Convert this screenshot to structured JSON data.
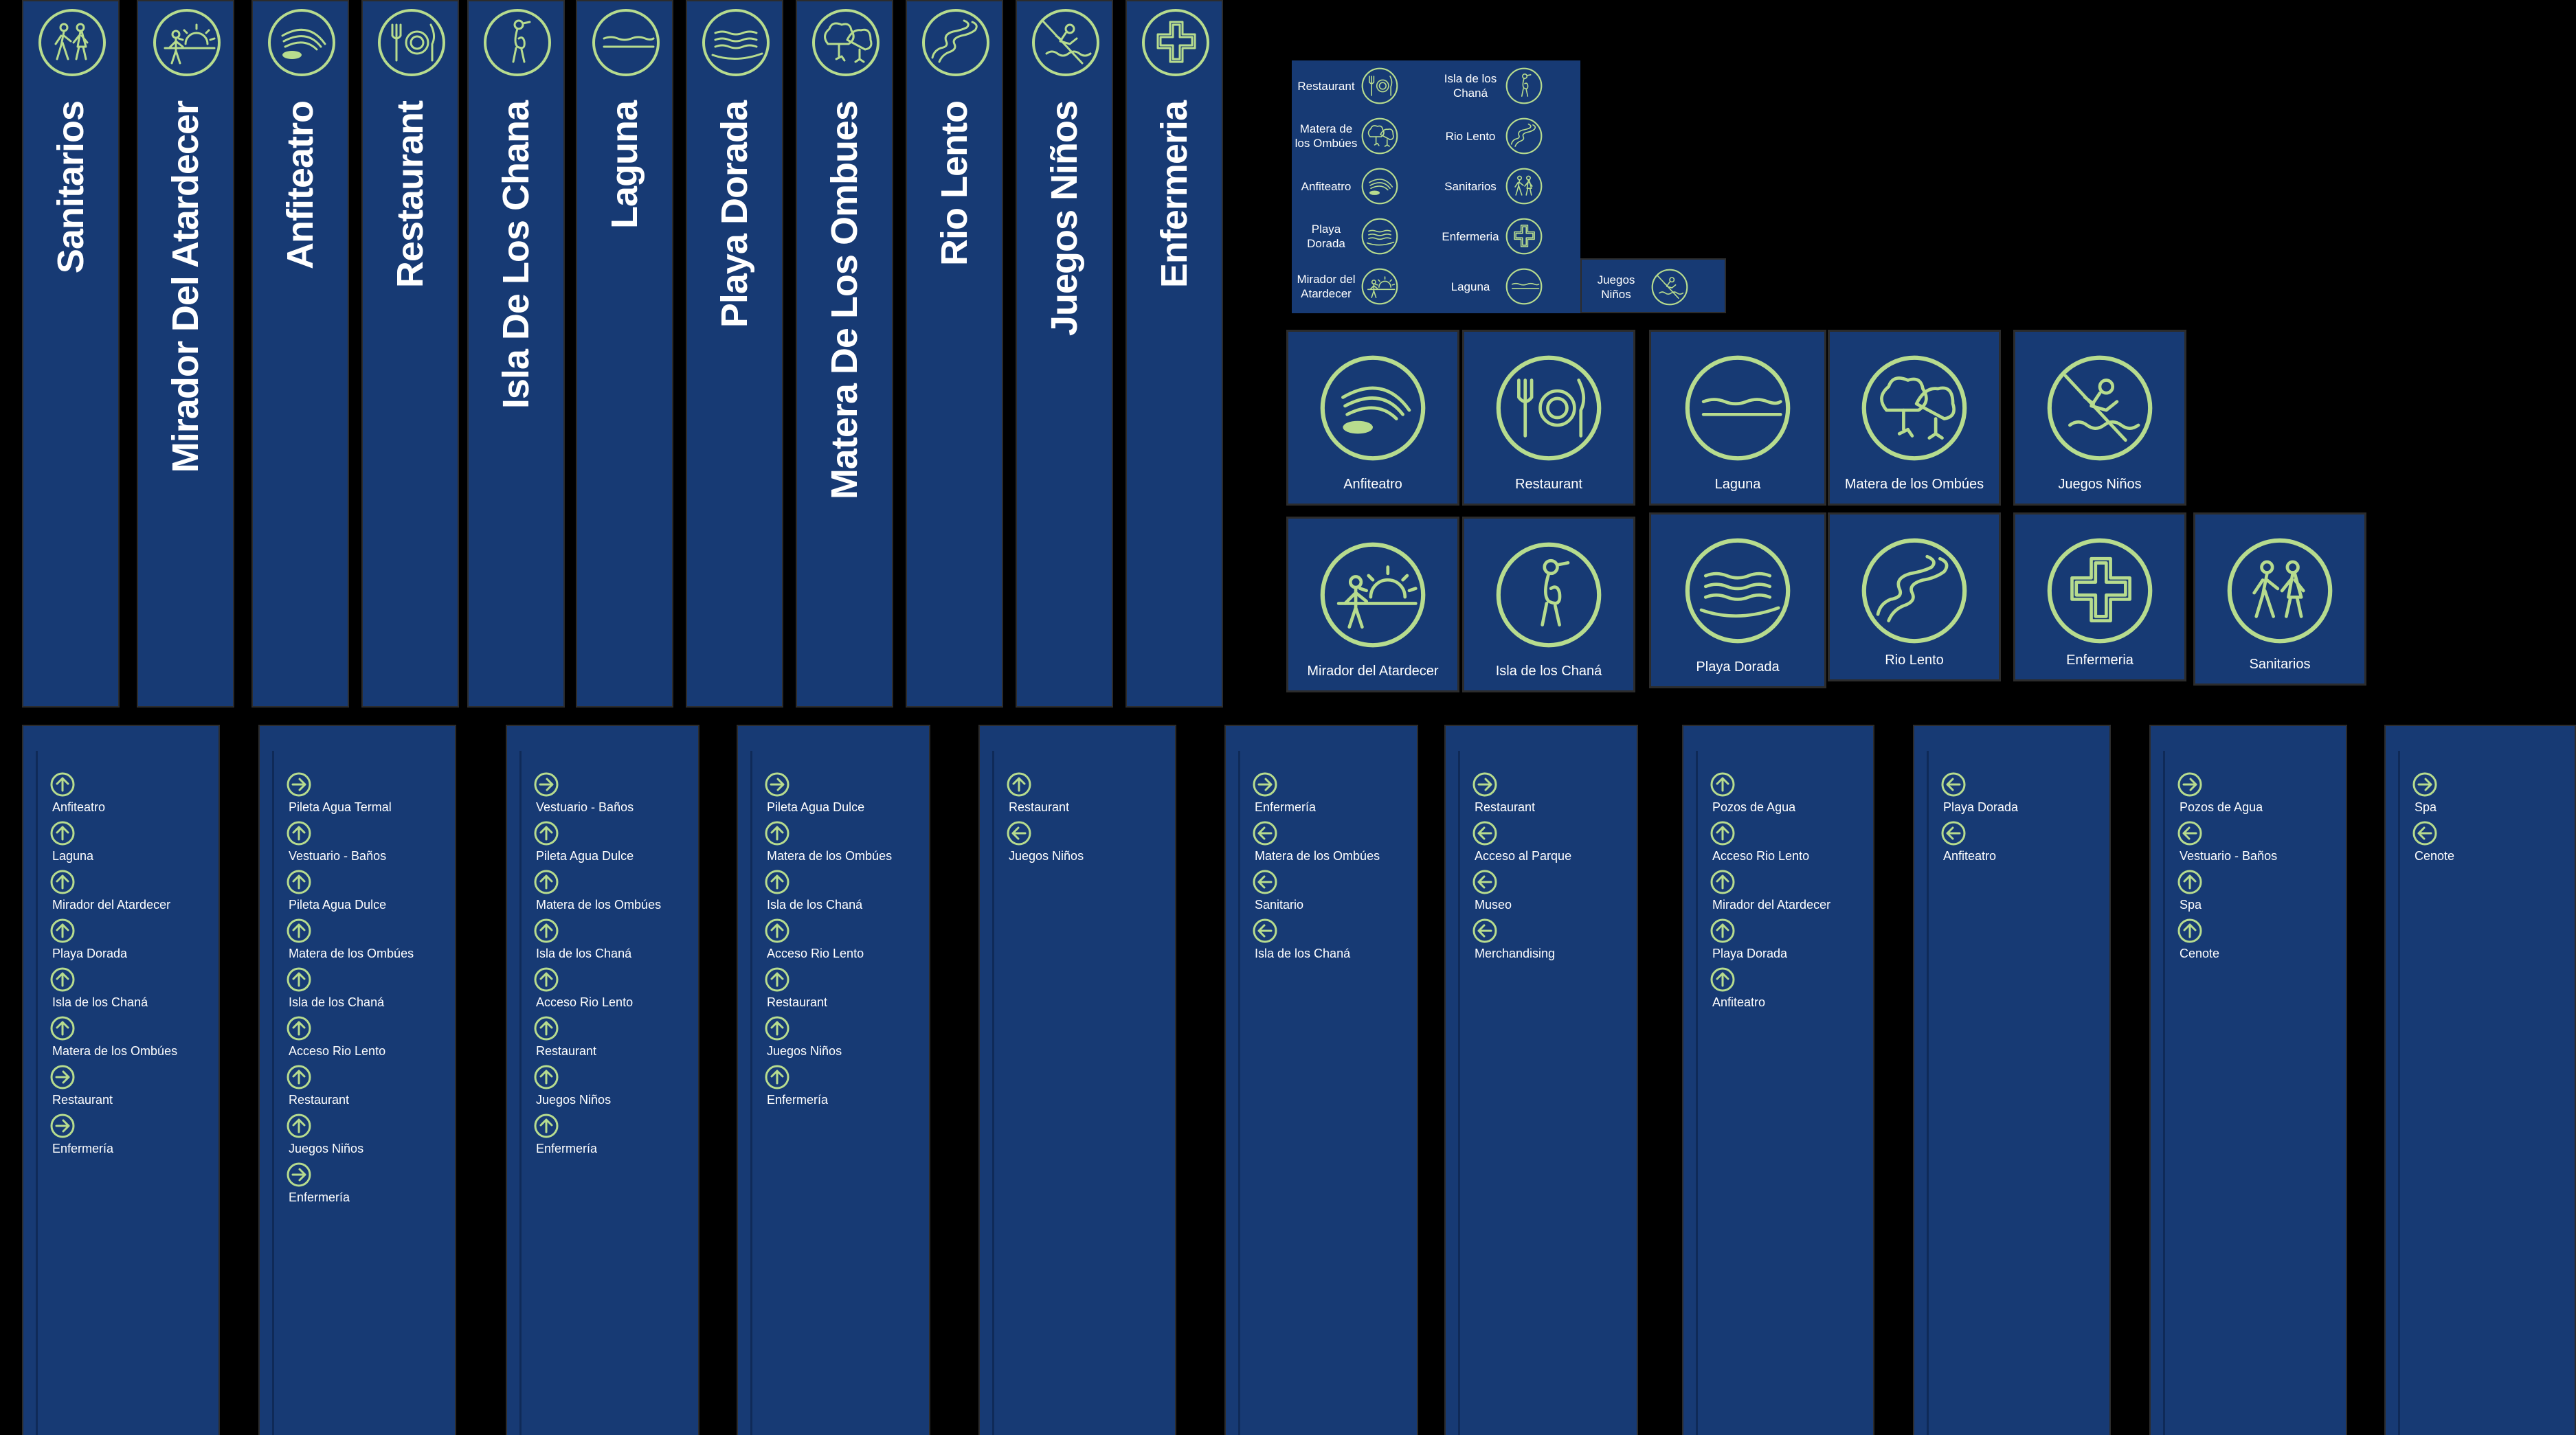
{
  "colors": {
    "background": "#000000",
    "panel": "#173a74",
    "icon_green": "#b7dc8e",
    "text": "#ffffff"
  },
  "banners": [
    {
      "label": "Sanitarios",
      "icon": "restroom-icon"
    },
    {
      "label": "Mirador Del Atardecer",
      "icon": "sunset-viewpoint-icon"
    },
    {
      "label": "Anfiteatro",
      "icon": "amphitheater-icon"
    },
    {
      "label": "Restaurant",
      "icon": "restaurant-icon"
    },
    {
      "label": "Isla De Los Chana",
      "icon": "island-bird-icon"
    },
    {
      "label": "Laguna",
      "icon": "lagoon-icon"
    },
    {
      "label": "Playa Dorada",
      "icon": "beach-icon"
    },
    {
      "label": "Matera De Los Ombues",
      "icon": "trees-icon"
    },
    {
      "label": "Rio Lento",
      "icon": "river-icon"
    },
    {
      "label": "Juegos Niños",
      "icon": "kids-games-icon"
    },
    {
      "label": "Enfermeria",
      "icon": "first-aid-icon"
    }
  ],
  "small_panel": [
    {
      "label": "Restaurant",
      "icon": "restaurant-icon"
    },
    {
      "label": "Isla de los Chaná",
      "icon": "island-bird-icon"
    },
    {
      "label": "Matera de los Ombúes",
      "icon": "trees-icon"
    },
    {
      "label": "Rio Lento",
      "icon": "river-icon"
    },
    {
      "label": "Anfiteatro",
      "icon": "amphitheater-icon"
    },
    {
      "label": "Sanitarios",
      "icon": "restroom-icon"
    },
    {
      "label": "Playa Dorada",
      "icon": "beach-icon"
    },
    {
      "label": "Enfermeria",
      "icon": "first-aid-icon"
    },
    {
      "label": "Mirador del Atardecer",
      "icon": "sunset-viewpoint-icon"
    },
    {
      "label": "Laguna",
      "icon": "lagoon-icon"
    },
    {
      "label": "Juegos Niños",
      "icon": "kids-games-icon"
    }
  ],
  "tiles": [
    {
      "label": "Anfiteatro",
      "icon": "amphitheater-icon"
    },
    {
      "label": "Restaurant",
      "icon": "restaurant-icon"
    },
    {
      "label": "Laguna",
      "icon": "lagoon-icon"
    },
    {
      "label": "Matera de los Ombúes",
      "icon": "trees-icon"
    },
    {
      "label": "Juegos Niños",
      "icon": "kids-games-icon"
    },
    {
      "label": "Mirador del Atardecer",
      "icon": "sunset-viewpoint-icon"
    },
    {
      "label": "Isla de los Chaná",
      "icon": "island-bird-icon"
    },
    {
      "label": "Playa Dorada",
      "icon": "beach-icon"
    },
    {
      "label": "Rio Lento",
      "icon": "river-icon"
    },
    {
      "label": "Enfermeria",
      "icon": "first-aid-icon"
    },
    {
      "label": "Sanitarios",
      "icon": "restroom-icon"
    }
  ],
  "directories": [
    {
      "rows": [
        {
          "dir": "up",
          "label": "Anfiteatro"
        },
        {
          "dir": "up",
          "label": "Laguna"
        },
        {
          "dir": "up",
          "label": "Mirador del Atardecer"
        },
        {
          "dir": "up",
          "label": "Playa Dorada"
        },
        {
          "dir": "up",
          "label": "Isla de los Chaná"
        },
        {
          "dir": "up",
          "label": "Matera de los Ombúes"
        },
        {
          "dir": "right",
          "label": "Restaurant"
        },
        {
          "dir": "right",
          "label": "Enfermería"
        }
      ]
    },
    {
      "rows": [
        {
          "dir": "right",
          "label": "Pileta Agua Termal"
        },
        {
          "dir": "up",
          "label": "Vestuario - Baños"
        },
        {
          "dir": "up",
          "label": "Pileta Agua Dulce"
        },
        {
          "dir": "up",
          "label": "Matera de los Ombúes"
        },
        {
          "dir": "up",
          "label": "Isla de los Chaná"
        },
        {
          "dir": "up",
          "label": "Acceso Rio Lento"
        },
        {
          "dir": "up",
          "label": "Restaurant"
        },
        {
          "dir": "up",
          "label": "Juegos Niños"
        },
        {
          "dir": "right",
          "label": "Enfermería"
        }
      ]
    },
    {
      "rows": [
        {
          "dir": "right",
          "label": "Vestuario - Baños"
        },
        {
          "dir": "up",
          "label": "Pileta Agua Dulce"
        },
        {
          "dir": "up",
          "label": "Matera de los Ombúes"
        },
        {
          "dir": "up",
          "label": "Isla de los Chaná"
        },
        {
          "dir": "up",
          "label": "Acceso Rio Lento"
        },
        {
          "dir": "up",
          "label": "Restaurant"
        },
        {
          "dir": "up",
          "label": "Juegos Niños"
        },
        {
          "dir": "up",
          "label": "Enfermería"
        }
      ]
    },
    {
      "rows": [
        {
          "dir": "right",
          "label": "Pileta Agua Dulce"
        },
        {
          "dir": "up",
          "label": "Matera de los Ombúes"
        },
        {
          "dir": "up",
          "label": "Isla de los Chaná"
        },
        {
          "dir": "up",
          "label": "Acceso Rio Lento"
        },
        {
          "dir": "up",
          "label": "Restaurant"
        },
        {
          "dir": "up",
          "label": "Juegos Niños"
        },
        {
          "dir": "up",
          "label": "Enfermería"
        }
      ]
    },
    {
      "rows": [
        {
          "dir": "up",
          "label": "Restaurant"
        },
        {
          "dir": "left",
          "label": "Juegos Niños"
        }
      ]
    },
    {
      "rows": [
        {
          "dir": "right",
          "label": "Enfermería"
        },
        {
          "dir": "left",
          "label": "Matera de los Ombúes"
        },
        {
          "dir": "left",
          "label": "Sanitario"
        },
        {
          "dir": "left",
          "label": "Isla de los Chaná"
        }
      ]
    },
    {
      "rows": [
        {
          "dir": "right",
          "label": "Restaurant"
        },
        {
          "dir": "left",
          "label": "Acceso al Parque"
        },
        {
          "dir": "left",
          "label": "Museo"
        },
        {
          "dir": "left",
          "label": "Merchandising"
        }
      ]
    },
    {
      "rows": [
        {
          "dir": "up",
          "label": "Pozos de Agua"
        },
        {
          "dir": "up",
          "label": "Acceso Rio Lento"
        },
        {
          "dir": "up",
          "label": "Mirador del Atardecer"
        },
        {
          "dir": "up",
          "label": "Playa Dorada"
        },
        {
          "dir": "up",
          "label": "Anfiteatro"
        }
      ]
    },
    {
      "rows": [
        {
          "dir": "left",
          "label": "Playa Dorada"
        },
        {
          "dir": "left",
          "label": "Anfiteatro"
        }
      ]
    },
    {
      "rows": [
        {
          "dir": "right",
          "label": "Pozos de Agua"
        },
        {
          "dir": "left",
          "label": "Vestuario - Baños"
        },
        {
          "dir": "up",
          "label": "Spa"
        },
        {
          "dir": "up",
          "label": "Cenote"
        }
      ]
    },
    {
      "rows": [
        {
          "dir": "right",
          "label": "Spa"
        },
        {
          "dir": "left",
          "label": "Cenote"
        }
      ]
    }
  ]
}
